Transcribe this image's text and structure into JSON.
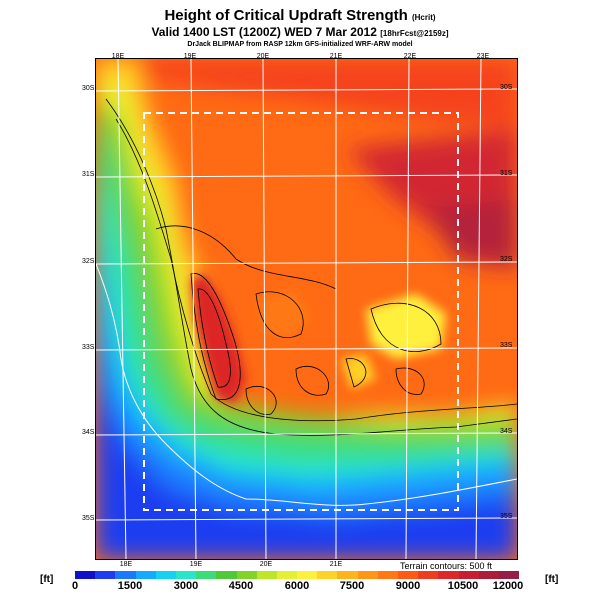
{
  "header": {
    "title": "Height of Critical Updraft Strength",
    "title_units": "(Hcrit)",
    "valid": "Valid 1400 LST (1200Z) WED 7 Mar 2012",
    "forecast": "[18hrFcst@2159z]",
    "credit": "DrJack BLIPMAP from RASP 12km GFS-initialized WRF-ARW model"
  },
  "map": {
    "lon_labels_top": [
      "18E",
      "19E",
      "20E",
      "21E",
      "22E",
      "23E"
    ],
    "lon_labels_bottom": [
      "18E",
      "19E",
      "20E",
      "21E"
    ],
    "lat_labels_left": [
      "30S",
      "31S",
      "32S",
      "33S",
      "34S",
      "35S"
    ],
    "lat_labels_right": [
      "30S",
      "31S",
      "32S",
      "33S",
      "34S",
      "35S"
    ],
    "terrain_note": "Terrain contours: 500 ft",
    "field_range_ft": [
      0,
      12000
    ]
  },
  "colorbar": {
    "unit_left": "[ft]",
    "unit_right": "[ft]",
    "ticks": [
      "0",
      "1500",
      "3000",
      "4500",
      "6000",
      "7500",
      "9000",
      "10500",
      "12000"
    ],
    "colors": [
      "#1010c8",
      "#1e3cf0",
      "#1e78ff",
      "#14aaff",
      "#14d2f0",
      "#28e6c8",
      "#3cdc78",
      "#50c83c",
      "#82d228",
      "#bee628",
      "#e6f032",
      "#fff03c",
      "#ffd228",
      "#ffb41e",
      "#ff9614",
      "#ff7814",
      "#ff5a14",
      "#f03c1e",
      "#dc2828",
      "#c81e32",
      "#aa1e3c",
      "#961e46"
    ]
  }
}
